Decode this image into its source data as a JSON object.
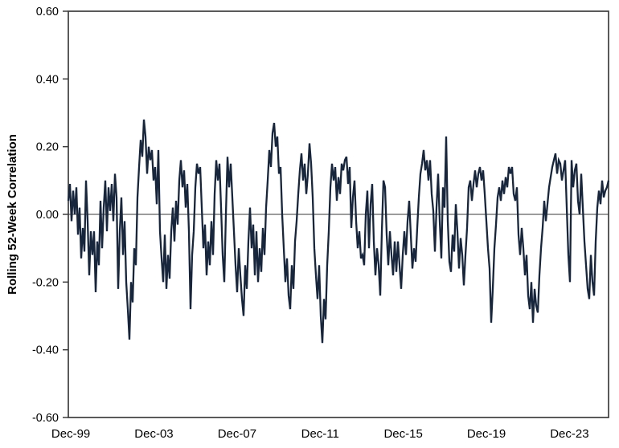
{
  "chart_data": {
    "type": "line",
    "title": "",
    "xlabel": "",
    "ylabel": "Rolling 52-Week Correlation",
    "ylim": [
      -0.6,
      0.6
    ],
    "ytick_interval": 0.2,
    "grid": false,
    "legend": "none",
    "zero_line": true,
    "line_color": "#17263c",
    "axis_color": "#3d3d3d",
    "zero_line_color": "#3a3a3a",
    "yticks": [
      {
        "label": "0.60",
        "value": 0.6
      },
      {
        "label": "0.40",
        "value": 0.4
      },
      {
        "label": "0.20",
        "value": 0.2
      },
      {
        "label": "0.00",
        "value": 0.0
      },
      {
        "label": "-0.20",
        "value": -0.2
      },
      {
        "label": "-0.40",
        "value": -0.4
      },
      {
        "label": "-0.60",
        "value": -0.6
      }
    ],
    "xticks": [
      {
        "label": "Dec-99",
        "year": 1999.92
      },
      {
        "label": "Dec-03",
        "year": 2003.92
      },
      {
        "label": "Dec-07",
        "year": 2007.92
      },
      {
        "label": "Dec-11",
        "year": 2011.92
      },
      {
        "label": "Dec-15",
        "year": 2015.92
      },
      {
        "label": "Dec-19",
        "year": 2019.92
      },
      {
        "label": "Dec-23",
        "year": 2023.92
      }
    ],
    "series": {
      "name": "Rolling 52-Week Correlation",
      "x_start_year": 1999.8,
      "x_step_years": 0.077381,
      "values": [
        0.04,
        0.09,
        -0.02,
        0.07,
        0,
        0.08,
        -0.06,
        0.02,
        -0.13,
        -0.04,
        -0.11,
        0.1,
        -0.02,
        -0.18,
        -0.05,
        -0.12,
        -0.05,
        -0.23,
        -0.08,
        -0.15,
        0.04,
        -0.1,
        0.02,
        0.1,
        -0.05,
        0.08,
        0.01,
        0.09,
        -0.02,
        0.12,
        0.05,
        -0.22,
        -0.05,
        0.05,
        -0.12,
        -0.02,
        -0.2,
        -0.28,
        -0.37,
        -0.2,
        -0.26,
        -0.1,
        -0.15,
        0.05,
        0.14,
        0.22,
        0.17,
        0.28,
        0.23,
        0.12,
        0.2,
        0.16,
        0.19,
        0.1,
        0.14,
        0.03,
        0.19,
        -0.05,
        -0.13,
        -0.2,
        -0.06,
        -0.22,
        -0.12,
        -0.19,
        -0.05,
        0.02,
        -0.08,
        0.04,
        -0.03,
        0.1,
        0.16,
        0.08,
        0.13,
        0.02,
        0.09,
        -0.05,
        -0.28,
        -0.12,
        -0.05,
        0.08,
        0.15,
        0.12,
        0.14,
        0.02,
        -0.1,
        -0.03,
        -0.18,
        -0.08,
        -0.15,
        -0.02,
        -0.12,
        0.06,
        0.16,
        0.1,
        0.15,
        0.02,
        -0.12,
        -0.2,
        0,
        0.17,
        0.08,
        0.15,
        0.05,
        -0.05,
        -0.15,
        -0.23,
        -0.1,
        -0.18,
        -0.25,
        -0.3,
        -0.15,
        -0.22,
        -0.08,
        0.02,
        -0.1,
        -0.03,
        -0.18,
        -0.05,
        -0.2,
        -0.1,
        -0.17,
        -0.04,
        -0.12,
        0.02,
        0.1,
        0.19,
        0.14,
        0.24,
        0.27,
        0.2,
        0.23,
        0.12,
        0.14,
        0,
        -0.1,
        -0.2,
        -0.13,
        -0.24,
        -0.28,
        -0.15,
        -0.22,
        -0.08,
        -0.02,
        0.06,
        0.13,
        0.18,
        0.1,
        0.15,
        0.06,
        0.12,
        0.21,
        0.15,
        0.05,
        -0.1,
        -0.18,
        -0.25,
        -0.15,
        -0.3,
        -0.38,
        -0.25,
        -0.31,
        -0.15,
        -0.05,
        0.08,
        0.15,
        0.1,
        0.14,
        0.04,
        0.11,
        0.06,
        0.15,
        0.13,
        0.16,
        0.17,
        0.09,
        0.14,
        -0.04,
        0.05,
        0.1,
        -0.02,
        -0.1,
        -0.05,
        -0.13,
        -0.12,
        -0.15,
        0,
        0.07,
        -0.1,
        0.03,
        0.09,
        -0.08,
        -0.18,
        -0.1,
        -0.15,
        -0.24,
        -0.05,
        0.1,
        0.08,
        -0.06,
        -0.15,
        -0.05,
        -0.12,
        -0.18,
        -0.08,
        -0.17,
        -0.08,
        -0.15,
        -0.22,
        -0.12,
        -0.05,
        -0.12,
        -0.02,
        0.04,
        -0.06,
        -0.16,
        -0.1,
        -0.14,
        -0.04,
        0.05,
        0.12,
        0.15,
        0.19,
        0.13,
        0.16,
        0.1,
        0.16,
        0.06,
        0.01,
        -0.11,
        0.02,
        0.12,
        -0.02,
        -0.13,
        0.08,
        0.02,
        0.23,
        -0.02,
        -0.14,
        -0.17,
        -0.06,
        -0.11,
        0.03,
        -0.05,
        -0.16,
        -0.07,
        -0.12,
        -0.21,
        -0.12,
        -0.04,
        0.08,
        0.1,
        0.04,
        0.09,
        0.13,
        0.08,
        0.12,
        0.14,
        0.1,
        0.13,
        0.06,
        -0.02,
        -0.1,
        -0.16,
        -0.32,
        -0.22,
        -0.1,
        -0.03,
        0.05,
        0.08,
        0.04,
        0.1,
        0.06,
        0.11,
        0.08,
        0.14,
        0.12,
        0.14,
        0.06,
        0.04,
        0.08,
        -0.06,
        -0.12,
        -0.04,
        -0.1,
        -0.18,
        -0.12,
        -0.24,
        -0.28,
        -0.2,
        -0.32,
        -0.22,
        -0.27,
        -0.29,
        -0.18,
        -0.1,
        -0.04,
        0.04,
        -0.02,
        0.03,
        0.08,
        0.11,
        0.14,
        0.16,
        0.18,
        0.12,
        0.16,
        0.15,
        0.1,
        0.13,
        0.16,
        0.02,
        -0.12,
        -0.2,
        0.16,
        0.08,
        0.13,
        0.15,
        0.04,
        0,
        0.12,
        0.02,
        -0.08,
        -0.15,
        -0.22,
        -0.25,
        -0.12,
        -0.2,
        -0.24,
        -0.08,
        0.02,
        0.07,
        0.03,
        0.1,
        0.05,
        0.07,
        0.08,
        0.1
      ]
    }
  }
}
